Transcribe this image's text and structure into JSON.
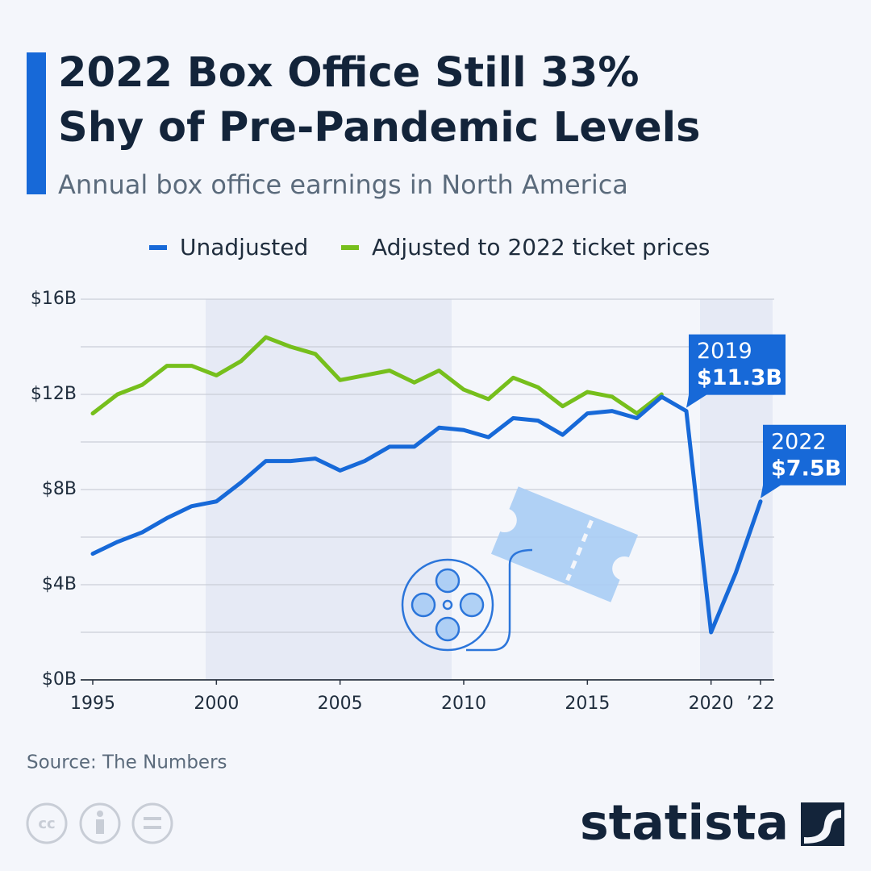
{
  "chart_data": {
    "type": "line",
    "title": [
      "2022 Box Office Still 33%",
      "Shy of Pre-Pandemic Levels"
    ],
    "subtitle": "Annual box office earnings in North America",
    "x": [
      1995,
      1996,
      1997,
      1998,
      1999,
      2000,
      2001,
      2002,
      2003,
      2004,
      2005,
      2006,
      2007,
      2008,
      2009,
      2010,
      2011,
      2012,
      2013,
      2014,
      2015,
      2016,
      2017,
      2018,
      2019,
      2020,
      2021,
      2022
    ],
    "series": [
      {
        "name": "Unadjusted",
        "color": "#1769d8",
        "values": [
          5.3,
          5.8,
          6.2,
          6.8,
          7.3,
          7.5,
          8.3,
          9.2,
          9.2,
          9.3,
          8.8,
          9.2,
          9.8,
          9.8,
          10.6,
          10.5,
          10.2,
          11.0,
          10.9,
          10.3,
          11.2,
          11.3,
          11.0,
          11.9,
          11.3,
          2.0,
          4.5,
          7.5
        ],
        "value_labels": [
          null,
          null,
          null,
          null,
          null,
          null,
          null,
          null,
          null,
          null,
          null,
          null,
          null,
          null,
          null,
          null,
          null,
          null,
          null,
          null,
          null,
          null,
          null,
          null,
          "$11.3B",
          null,
          null,
          "$7.5B"
        ]
      },
      {
        "name": "Adjusted to 2022 ticket prices",
        "color": "#76bf1c",
        "values": [
          11.2,
          12.0,
          12.4,
          13.2,
          13.2,
          12.8,
          13.4,
          14.4,
          14.0,
          13.7,
          12.6,
          12.8,
          13.0,
          12.5,
          13.0,
          12.2,
          11.8,
          12.7,
          12.3,
          11.5,
          12.1,
          11.9,
          11.2,
          12.0,
          null,
          null,
          null,
          null
        ]
      }
    ],
    "annotations": [
      {
        "x": 2019,
        "text": "2019"
      },
      {
        "x": 2022,
        "text": "2022"
      }
    ],
    "xlim": [
      1995,
      2022
    ],
    "xticks": [
      1995,
      2000,
      2005,
      2010,
      2015,
      2020,
      {
        "value": 2022,
        "label": "’22"
      }
    ],
    "ylim": [
      0,
      16
    ],
    "yticks": [
      {
        "value": 0,
        "label": "$0B"
      },
      {
        "value": 4,
        "label": "$4B"
      },
      {
        "value": 8,
        "label": "$8B"
      },
      {
        "value": 12,
        "label": "$12B"
      },
      {
        "value": 16,
        "label": "$16B"
      }
    ],
    "minor_yticks": [
      2,
      6,
      10,
      14
    ],
    "grid": true,
    "source": "Source: The Numbers",
    "brand": "statista"
  }
}
